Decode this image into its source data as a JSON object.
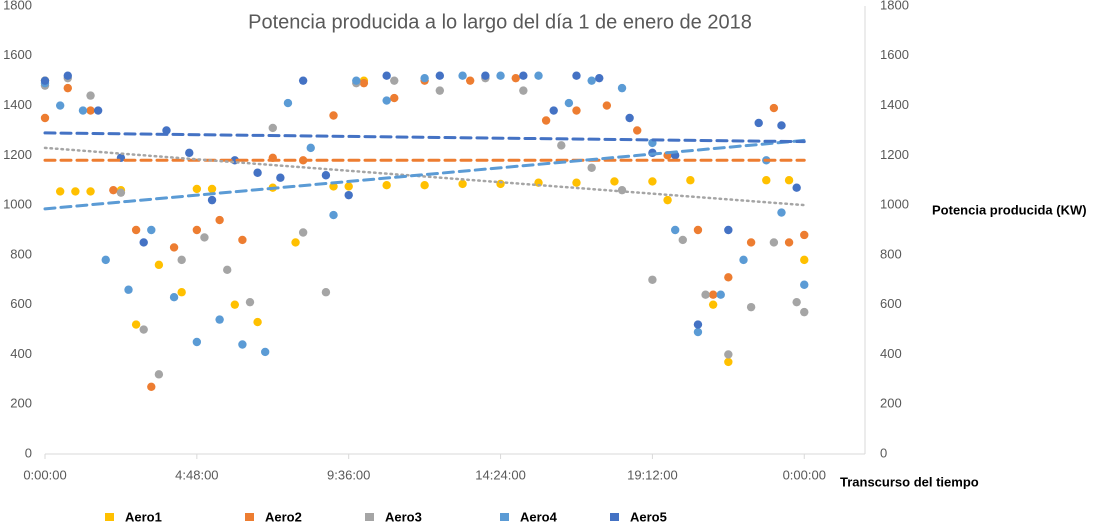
{
  "chart_data": {
    "type": "scatter",
    "title": "Potencia producida a lo largo del día 1 de enero de 2018",
    "x_label": "Transcurso del tiempo",
    "y2_label": "Potencia producida (KW)",
    "xlim": [
      0,
      1.08
    ],
    "xticks": [
      {
        "value": 0,
        "label": "0:00:00"
      },
      {
        "value": 0.2,
        "label": "4:48:00"
      },
      {
        "value": 0.4,
        "label": "9:36:00"
      },
      {
        "value": 0.6,
        "label": "14:24:00"
      },
      {
        "value": 0.8,
        "label": "19:12:00"
      },
      {
        "value": 1,
        "label": "0:00:00"
      }
    ],
    "ylim": [
      0,
      1800
    ],
    "yticks": [
      0,
      200,
      400,
      600,
      800,
      1000,
      1200,
      1400,
      1600,
      1800
    ],
    "y2lim": [
      0,
      1800
    ],
    "y2ticks": [
      0,
      200,
      400,
      600,
      800,
      1000,
      1200,
      1400,
      1600,
      1800
    ],
    "grid": false,
    "legend": "bottom",
    "trend_x": [
      0,
      1
    ],
    "series": [
      {
        "name": "Aero1",
        "color": "#FFC000",
        "x": [
          0,
          0.02,
          0.04,
          0.06,
          0.1,
          0.12,
          0.15,
          0.18,
          0.2,
          0.22,
          0.25,
          0.28,
          0.3,
          0.33,
          0.38,
          0.4,
          0.42,
          0.45,
          0.5,
          0.55,
          0.6,
          0.65,
          0.7,
          0.75,
          0.8,
          0.82,
          0.85,
          0.88,
          0.9,
          0.95,
          0.98,
          1.0
        ],
        "values": [
          1500,
          1055,
          1055,
          1055,
          1060,
          520,
          760,
          650,
          1065,
          1065,
          600,
          530,
          1070,
          850,
          1075,
          1075,
          1500,
          1080,
          1080,
          1085,
          1085,
          1090,
          1090,
          1095,
          1095,
          1020,
          1100,
          600,
          370,
          1100,
          1100,
          780
        ]
      },
      {
        "name": "Aero2",
        "color": "#ED7D31",
        "trend": [
          1180,
          1180
        ],
        "trend_style": "dashed",
        "x": [
          0,
          0.03,
          0.06,
          0.09,
          0.12,
          0.14,
          0.17,
          0.2,
          0.23,
          0.26,
          0.3,
          0.34,
          0.38,
          0.42,
          0.46,
          0.5,
          0.56,
          0.62,
          0.66,
          0.7,
          0.74,
          0.78,
          0.82,
          0.86,
          0.88,
          0.9,
          0.93,
          0.96,
          0.98,
          1.0
        ],
        "values": [
          1350,
          1470,
          1380,
          1060,
          900,
          270,
          830,
          900,
          940,
          860,
          1190,
          1180,
          1360,
          1490,
          1430,
          1500,
          1500,
          1510,
          1340,
          1380,
          1400,
          1300,
          1200,
          900,
          640,
          710,
          850,
          1390,
          850,
          880
        ]
      },
      {
        "name": "Aero3",
        "color": "#A5A5A5",
        "trend": [
          1230,
          1000
        ],
        "trend_style": "dotted",
        "x": [
          0,
          0.03,
          0.06,
          0.1,
          0.13,
          0.15,
          0.18,
          0.21,
          0.24,
          0.27,
          0.3,
          0.34,
          0.37,
          0.41,
          0.46,
          0.52,
          0.58,
          0.63,
          0.68,
          0.72,
          0.76,
          0.8,
          0.84,
          0.87,
          0.9,
          0.93,
          0.96,
          0.99,
          1.0
        ],
        "values": [
          1480,
          1510,
          1440,
          1050,
          500,
          320,
          780,
          870,
          740,
          610,
          1310,
          890,
          650,
          1490,
          1500,
          1460,
          1510,
          1460,
          1240,
          1150,
          1060,
          700,
          860,
          640,
          400,
          590,
          850,
          610,
          570
        ]
      },
      {
        "name": "Aero4",
        "color": "#5B9BD5",
        "trend": [
          985,
          1260
        ],
        "trend_style": "dashed",
        "x": [
          0,
          0.02,
          0.05,
          0.08,
          0.11,
          0.14,
          0.17,
          0.2,
          0.23,
          0.26,
          0.29,
          0.32,
          0.35,
          0.38,
          0.41,
          0.45,
          0.5,
          0.55,
          0.6,
          0.65,
          0.69,
          0.72,
          0.76,
          0.8,
          0.83,
          0.86,
          0.89,
          0.92,
          0.95,
          0.97,
          1.0
        ],
        "values": [
          1490,
          1400,
          1380,
          780,
          660,
          900,
          630,
          450,
          540,
          440,
          410,
          1410,
          1230,
          960,
          1500,
          1420,
          1510,
          1520,
          1520,
          1520,
          1410,
          1500,
          1470,
          1250,
          900,
          490,
          640,
          780,
          1180,
          970,
          680
        ]
      },
      {
        "name": "Aero5",
        "color": "#4472C4",
        "trend": [
          1290,
          1255
        ],
        "trend_style": "dashed",
        "x": [
          0,
          0.03,
          0.07,
          0.1,
          0.13,
          0.16,
          0.19,
          0.22,
          0.25,
          0.28,
          0.31,
          0.34,
          0.37,
          0.4,
          0.45,
          0.52,
          0.58,
          0.63,
          0.67,
          0.7,
          0.73,
          0.77,
          0.8,
          0.83,
          0.86,
          0.9,
          0.94,
          0.97,
          0.99
        ],
        "values": [
          1500,
          1520,
          1380,
          1190,
          850,
          1300,
          1210,
          1020,
          1180,
          1130,
          1110,
          1500,
          1120,
          1040,
          1520,
          1520,
          1520,
          1520,
          1380,
          1520,
          1510,
          1350,
          1210,
          1200,
          520,
          900,
          1330,
          1320,
          1070
        ]
      }
    ]
  }
}
